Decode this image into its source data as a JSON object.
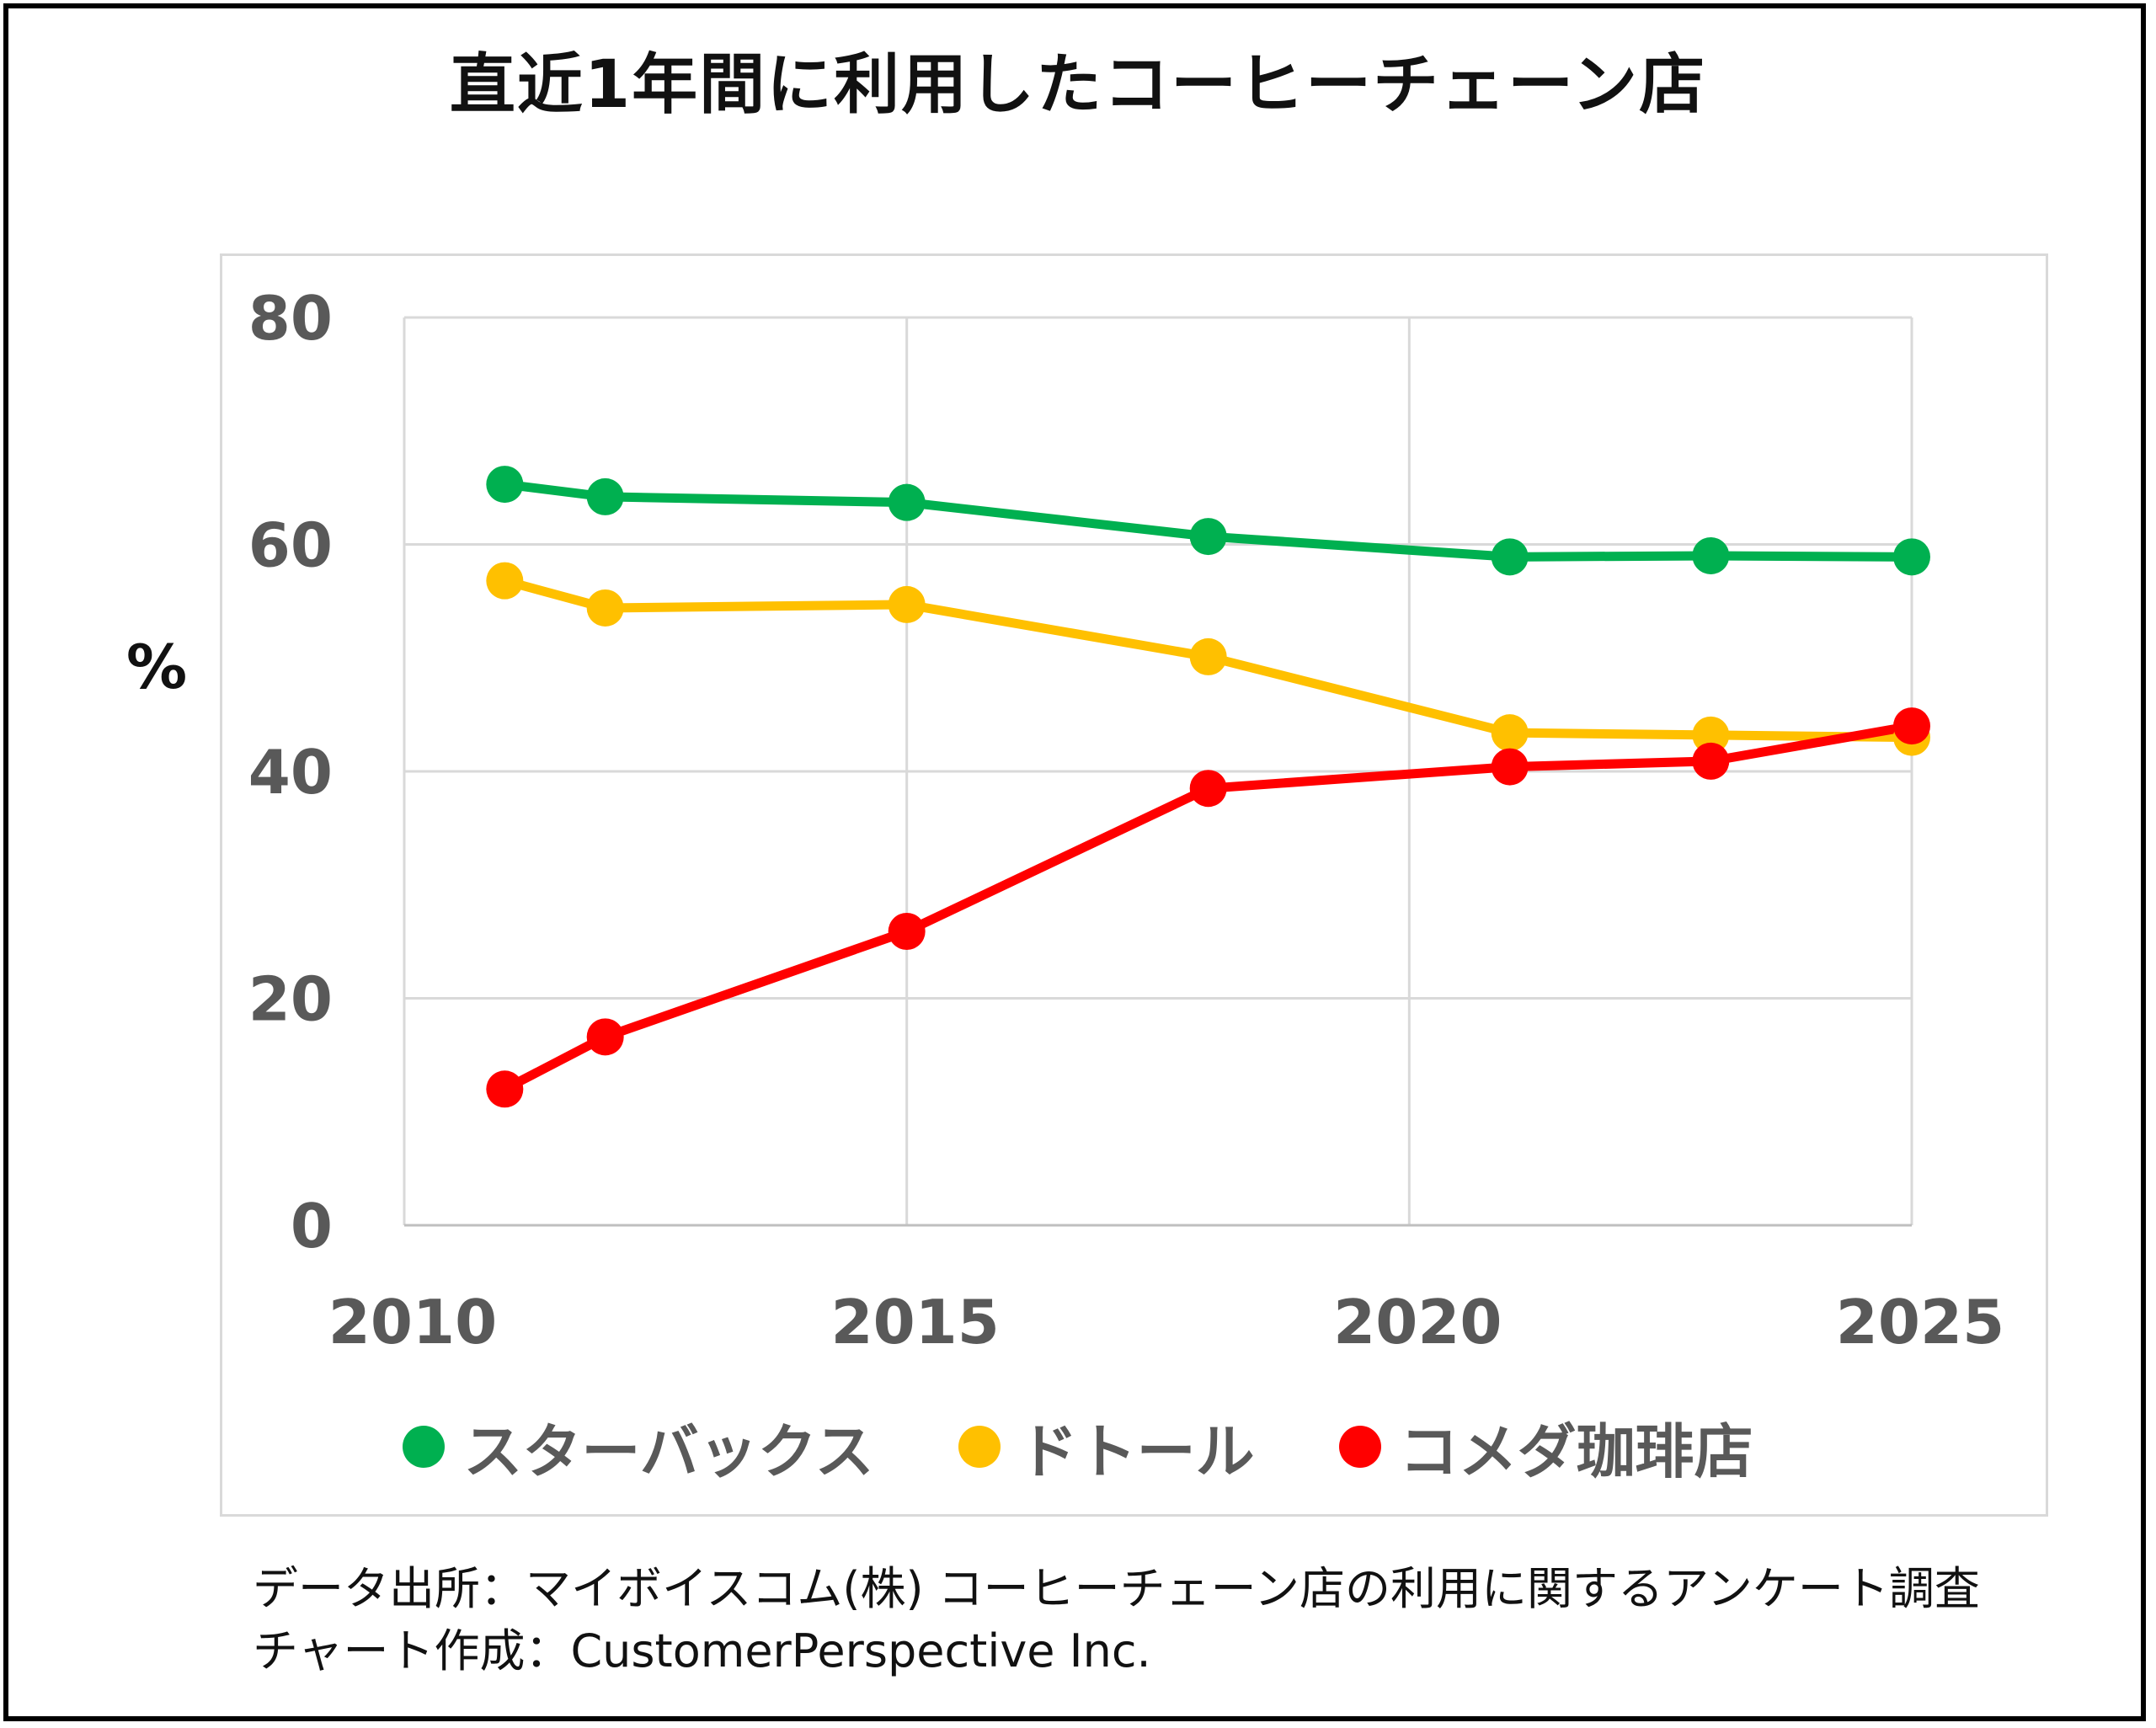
{
  "title": "直近1年間に利用したコーヒーチェーン店",
  "chart_data": {
    "type": "line",
    "title": "直近1年間に利用したコーヒーチェーン店",
    "ylabel": "%",
    "xlabel": "",
    "xlim": [
      2010,
      2025
    ],
    "ylim": [
      0,
      80
    ],
    "x_ticks": [
      2010,
      2015,
      2020,
      2025
    ],
    "y_ticks": [
      0,
      20,
      40,
      60,
      80
    ],
    "grid": true,
    "legend": "bottom",
    "x": [
      2011,
      2012,
      2015,
      2018,
      2021,
      2023,
      2025
    ],
    "series": [
      {
        "name": "スターバックス",
        "color": "#00b050",
        "values": [
          65.3,
          64.2,
          63.7,
          60.7,
          58.9,
          59.0,
          58.9
        ]
      },
      {
        "name": "ドトール",
        "color": "#ffc000",
        "values": [
          56.8,
          54.4,
          54.7,
          50.1,
          43.4,
          43.2,
          43.0
        ]
      },
      {
        "name": "コメダ珈琲店",
        "color": "#ff0000",
        "values": [
          12.0,
          16.6,
          25.9,
          38.5,
          40.4,
          40.9,
          44.0
        ]
      }
    ]
  },
  "source": {
    "line1": "データ出所：マイボイスコム(株) コーヒーチェーン店の利用に関するアンケート調査",
    "line2": "チャート作成：CustomerPerspective Inc."
  }
}
